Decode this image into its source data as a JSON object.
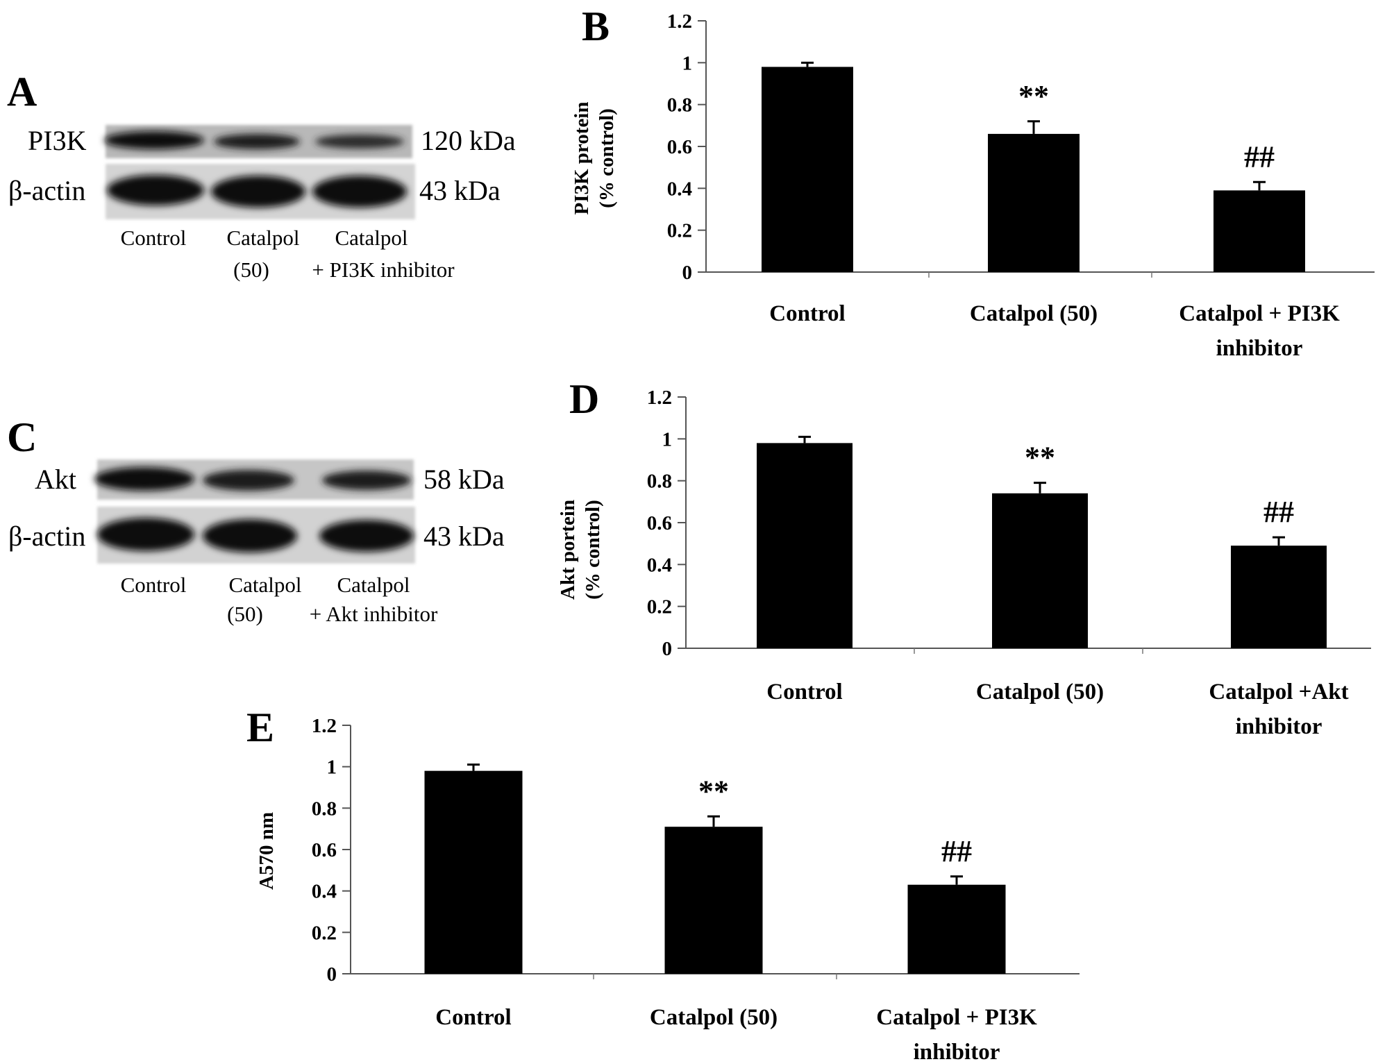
{
  "blots": [
    {
      "panel": "A",
      "rows": [
        {
          "label": "PI3K",
          "size": "120 kDa"
        },
        {
          "label": "β-actin",
          "size": "43 kDa"
        }
      ],
      "lanes": [
        [
          "Control"
        ],
        [
          "Catalpol",
          "(50)"
        ],
        [
          "Catalpol",
          "+ PI3K inhibitor"
        ]
      ]
    },
    {
      "panel": "C",
      "rows": [
        {
          "label": "Akt",
          "size": "58 kDa"
        },
        {
          "label": "β-actin",
          "size": "43 kDa"
        }
      ],
      "lanes": [
        [
          "Control"
        ],
        [
          "Catalpol",
          "(50)"
        ],
        [
          "Catalpol",
          "+ Akt inhibitor"
        ]
      ]
    }
  ],
  "chart_data": [
    {
      "panel": "B",
      "type": "bar",
      "categories": [
        [
          "Control"
        ],
        [
          "Catalpol (50)"
        ],
        [
          "Catalpol + PI3K",
          "inhibitor"
        ]
      ],
      "values": [
        0.98,
        0.66,
        0.39
      ],
      "errors": [
        0.02,
        0.06,
        0.04
      ],
      "annotations": [
        "",
        "**",
        "##"
      ],
      "ylabel": [
        "PI3K protein",
        "(% control)"
      ],
      "ylim": [
        0,
        1.2
      ],
      "yticks": [
        "0",
        "0.2",
        "0.4",
        "0.6",
        "0.8",
        "1",
        "1.2"
      ],
      "bar_color": "#000000"
    },
    {
      "panel": "D",
      "type": "bar",
      "categories": [
        [
          "Control"
        ],
        [
          "Catalpol (50)"
        ],
        [
          "Catalpol +Akt",
          "inhibitor"
        ]
      ],
      "values": [
        0.98,
        0.74,
        0.49
      ],
      "errors": [
        0.03,
        0.05,
        0.04
      ],
      "annotations": [
        "",
        "**",
        "##"
      ],
      "ylabel": [
        "Akt portein",
        "(% control)"
      ],
      "ylim": [
        0,
        1.2
      ],
      "yticks": [
        "0",
        "0.2",
        "0.4",
        "0.6",
        "0.8",
        "1",
        "1.2"
      ],
      "bar_color": "#000000"
    },
    {
      "panel": "E",
      "type": "bar",
      "categories": [
        [
          "Control"
        ],
        [
          "Catalpol (50)"
        ],
        [
          "Catalpol + PI3K",
          "inhibitor"
        ]
      ],
      "values": [
        0.98,
        0.71,
        0.43
      ],
      "errors": [
        0.03,
        0.05,
        0.04
      ],
      "annotations": [
        "",
        "**",
        "##"
      ],
      "ylabel": [
        "A570 nm"
      ],
      "ylim": [
        0,
        1.2
      ],
      "yticks": [
        "0",
        "0.2",
        "0.4",
        "0.6",
        "0.8",
        "1",
        "1.2"
      ],
      "bar_color": "#000000"
    }
  ]
}
